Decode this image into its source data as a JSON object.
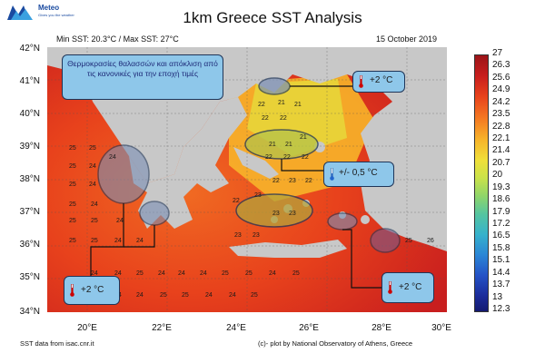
{
  "header": {
    "brand": "Meteo",
    "brand_tagline": "Gives you the weather",
    "title": "1km Greece SST Analysis",
    "min_max": "Min SST: 20.3°C / Max SST: 27°C",
    "date": "15 October 2019"
  },
  "axes": {
    "lat_labels": [
      "42°N",
      "41°N",
      "40°N",
      "39°N",
      "38°N",
      "37°N",
      "36°N",
      "35°N",
      "34°N"
    ],
    "lon_labels": [
      "20°E",
      "22°E",
      "24°E",
      "26°E",
      "28°E",
      "30°E"
    ]
  },
  "colorbar": {
    "labels": [
      "27",
      "26.3",
      "25.6",
      "24.9",
      "24.2",
      "23.5",
      "22.8",
      "22.1",
      "21.4",
      "20.7",
      "20",
      "19.3",
      "18.6",
      "17.9",
      "17.2",
      "16.5",
      "15.8",
      "15.1",
      "14.4",
      "13.7",
      "13",
      "12.3"
    ],
    "top_color": "#9b1418",
    "bottom_color": "#141a70"
  },
  "annotations": {
    "greek_note": "Θερμοκρασίες θαλασσών και απόκλιση από τις κανονικές για την εποχή τιμές",
    "callout_north": "+2 °C",
    "callout_center": "+/- 0,5 °C",
    "callout_southwest": "+2 °C",
    "callout_southeast": "+2 °C"
  },
  "sst_values": {
    "aegean": [
      "22",
      "21",
      "21",
      "22",
      "22",
      "21",
      "21",
      "21",
      "22",
      "22",
      "22",
      "22",
      "23",
      "22",
      "22",
      "23",
      "23",
      "23",
      "23",
      "23"
    ],
    "ionian": [
      "25",
      "25",
      "25",
      "24",
      "24",
      "25",
      "24",
      "25",
      "24",
      "25",
      "25",
      "24",
      "25",
      "25",
      "24",
      "24"
    ],
    "south": [
      "24",
      "24",
      "25",
      "24",
      "24",
      "24",
      "25",
      "25",
      "24",
      "25",
      "25",
      "24",
      "24",
      "25",
      "25",
      "24",
      "24",
      "25",
      "26",
      "25"
    ]
  },
  "footer": {
    "source": "SST data from isac.cnr.it",
    "credit": "(c)- plot by National Observatory of Athens, Greece"
  },
  "colors": {
    "sea_warm": "#e8421c",
    "sea_hot": "#c81e1e",
    "sea_mid": "#f47b22",
    "sea_cool": "#f0e03a",
    "land": "#c8c8c8",
    "callout_bg": "#8ec7ea"
  }
}
